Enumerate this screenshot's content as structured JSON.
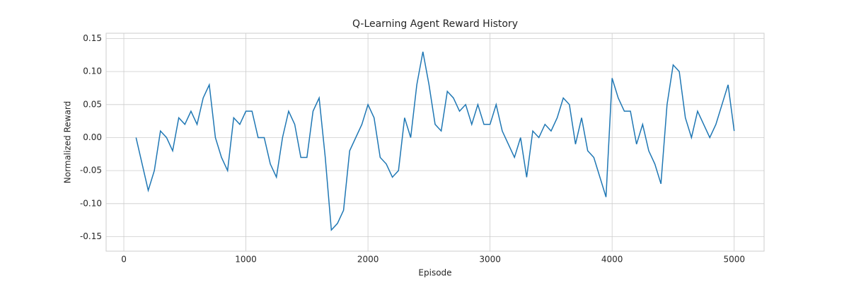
{
  "chart_data": {
    "type": "line",
    "title": "Q-Learning Agent Reward History",
    "x_label": "Episode",
    "y_label": "Normalized Reward",
    "x": [
      100,
      150,
      200,
      250,
      300,
      350,
      400,
      450,
      500,
      550,
      600,
      650,
      700,
      750,
      800,
      850,
      900,
      950,
      1000,
      1050,
      1100,
      1150,
      1200,
      1250,
      1300,
      1350,
      1400,
      1450,
      1500,
      1550,
      1600,
      1650,
      1700,
      1750,
      1800,
      1850,
      1900,
      1950,
      2000,
      2050,
      2100,
      2150,
      2200,
      2250,
      2300,
      2350,
      2400,
      2450,
      2500,
      2550,
      2600,
      2650,
      2700,
      2750,
      2800,
      2850,
      2900,
      2950,
      3000,
      3050,
      3100,
      3150,
      3200,
      3250,
      3300,
      3350,
      3400,
      3450,
      3500,
      3550,
      3600,
      3650,
      3700,
      3750,
      3800,
      3850,
      3900,
      3950,
      4000,
      4050,
      4100,
      4150,
      4200,
      4250,
      4300,
      4350,
      4400,
      4450,
      4500,
      4550,
      4600,
      4650,
      4700,
      4750,
      4800,
      4850,
      4900,
      4950,
      5000
    ],
    "series": [
      {
        "color": "#1f77b4",
        "values": [
          0.0,
          -0.04,
          -0.08,
          -0.05,
          0.01,
          0.0,
          -0.02,
          0.03,
          0.02,
          0.04,
          0.02,
          0.06,
          0.08,
          0.0,
          -0.03,
          -0.05,
          0.03,
          0.02,
          0.04,
          0.04,
          0.0,
          0.0,
          -0.04,
          -0.06,
          0.0,
          0.04,
          0.02,
          -0.03,
          -0.03,
          0.04,
          0.06,
          -0.03,
          -0.14,
          -0.13,
          -0.11,
          -0.02,
          0.0,
          0.02,
          0.05,
          0.03,
          -0.03,
          -0.04,
          -0.06,
          -0.05,
          0.03,
          0.0,
          0.08,
          0.13,
          0.08,
          0.02,
          0.01,
          0.07,
          0.06,
          0.04,
          0.05,
          0.02,
          0.05,
          0.02,
          0.02,
          0.05,
          0.01,
          -0.01,
          -0.03,
          0.0,
          -0.06,
          0.01,
          0.0,
          0.02,
          0.01,
          0.03,
          0.06,
          0.05,
          -0.01,
          0.03,
          -0.02,
          -0.03,
          -0.06,
          -0.09,
          0.09,
          0.06,
          0.04,
          0.04,
          -0.01,
          0.02,
          -0.02,
          -0.04,
          -0.07,
          0.05,
          0.11,
          0.1,
          0.03,
          0.0,
          0.04,
          0.02,
          0.0,
          0.02,
          0.05,
          0.08,
          0.01
        ]
      }
    ],
    "xlim": [
      -145,
      5245
    ],
    "ylim": [
      -0.172,
      0.158
    ],
    "xticks": [
      0,
      1000,
      2000,
      3000,
      4000,
      5000
    ],
    "yticks": [
      {
        "value": -0.15,
        "label": "-0.15"
      },
      {
        "value": -0.1,
        "label": "-0.10"
      },
      {
        "value": -0.05,
        "label": "-0.05"
      },
      {
        "value": 0,
        "label": "0.00"
      },
      {
        "value": 0.05,
        "label": "0.05"
      },
      {
        "value": 0.1,
        "label": "0.10"
      },
      {
        "value": 0.15,
        "label": "0.15"
      }
    ],
    "grid": true
  }
}
